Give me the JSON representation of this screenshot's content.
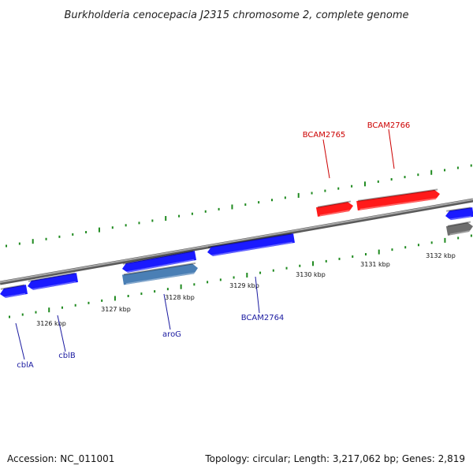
{
  "title": "Burkholderia cenocepacia J2315 chromosome 2, complete genome",
  "footer": {
    "accession": "Accession: NC_011001",
    "summary": "Topology: circular; Length: 3,217,062 bp; Genes: 2,819"
  },
  "colors": {
    "backbone": "#8c8c8c",
    "tick": "#1f8a1f",
    "forward_gene": "#ff1a1a",
    "reverse_gene": "#1a1aff",
    "highlight_gene": "#4a7fb5",
    "other_gene": "#6e6e6e",
    "forward_label": "#cc0000",
    "reverse_label": "#1a1aa0"
  },
  "scale": {
    "start_kbp": 3125.0,
    "end_kbp": 3132.8
  },
  "tick_labels": [
    "3126 kbp",
    "3127 kbp",
    "3128 kbp",
    "3129 kbp",
    "3130 kbp",
    "3131 kbp",
    "3132 kbp"
  ],
  "tick_kbp": [
    3126,
    3127,
    3128,
    3129,
    3130,
    3131,
    3132
  ],
  "labeled_genes": [
    {
      "name": "cblA",
      "strand": "reverse"
    },
    {
      "name": "cblB",
      "strand": "reverse"
    },
    {
      "name": "aroG",
      "strand": "reverse"
    },
    {
      "name": "BCAM2764",
      "strand": "reverse"
    },
    {
      "name": "BCAM2765",
      "strand": "forward"
    },
    {
      "name": "BCAM2766",
      "strand": "forward"
    }
  ]
}
